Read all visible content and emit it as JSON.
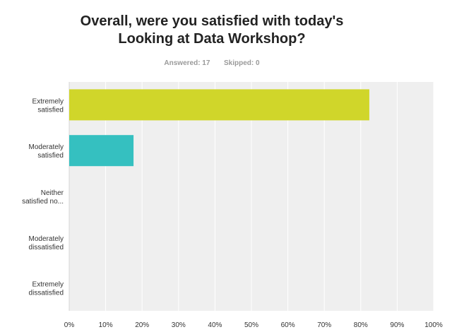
{
  "header": {
    "title_line1": "Overall, were you satisfied with today's",
    "title_line2": "Looking at Data Workshop?",
    "answered_label": "Answered: 17",
    "skipped_label": "Skipped: 0"
  },
  "colors": {
    "bar_extremely_satisfied": "#d0d62a",
    "bar_moderately_satisfied": "#35c0c0",
    "plot_background": "#efefef",
    "gridline": "#ffffff"
  },
  "chart_data": {
    "type": "bar",
    "orientation": "horizontal",
    "categories": [
      [
        "Extremely",
        "satisfied"
      ],
      [
        "Moderately",
        "satisfied"
      ],
      [
        "Neither",
        "satisfied no..."
      ],
      [
        "Moderately",
        "dissatisfied"
      ],
      [
        "Extremely",
        "dissatisfied"
      ]
    ],
    "values": [
      82.35,
      17.65,
      0,
      0,
      0
    ],
    "bar_colors": [
      "#d0d62a",
      "#35c0c0",
      "#d0d62a",
      "#d0d62a",
      "#d0d62a"
    ],
    "xlim": [
      0,
      100
    ],
    "xticks": [
      "0%",
      "10%",
      "20%",
      "30%",
      "40%",
      "50%",
      "60%",
      "70%",
      "80%",
      "90%",
      "100%"
    ],
    "grid": true,
    "title": "Overall, were you satisfied with today's Looking at Data Workshop?"
  }
}
